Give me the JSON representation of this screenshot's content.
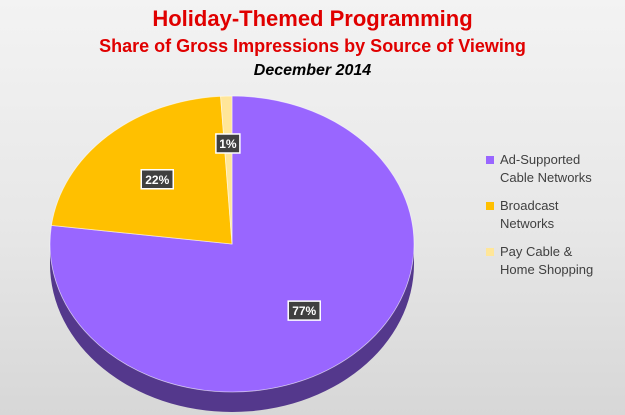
{
  "chart_data": {
    "type": "pie",
    "title": "Holiday-Themed Programming",
    "subtitle": "Share of Gross Impressions by Source of Viewing",
    "subtitle2": "December 2014",
    "slices": [
      {
        "label": "Ad-Supported\nCable Networks",
        "value": 77,
        "display": "77%",
        "color": "#9966ff"
      },
      {
        "label": "Broadcast\nNetworks",
        "value": 22,
        "display": "22%",
        "color": "#ffc000"
      },
      {
        "label": "Pay Cable &\nHome Shopping",
        "value": 1,
        "display": "1%",
        "color": "#ffe699"
      }
    ],
    "legend_position": "right",
    "style": "3d"
  }
}
